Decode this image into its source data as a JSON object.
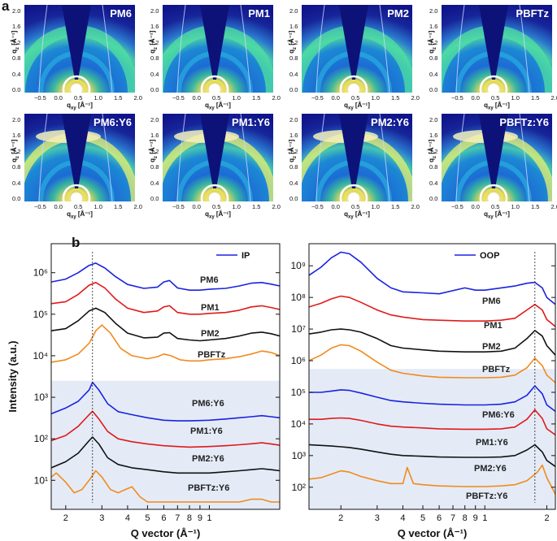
{
  "panel_a_label": "a",
  "panel_b_label": "b",
  "giwaxs": {
    "xlabel": "q_xy [Å⁻¹]",
    "xlabel_main": "q",
    "xlabel_sub": "xy",
    "xlabel_unit": " [Å⁻¹]",
    "ylabel_main": "q",
    "ylabel_sub": "z",
    "ylabel_unit": " [Å⁻¹]",
    "xticks": [
      "−0.5",
      "0.0",
      "0.5",
      "1.0",
      "1.5",
      "2.0"
    ],
    "yticks": [
      "0.0",
      "0.4",
      "0.8",
      "1.2",
      "1.6",
      "2.0"
    ],
    "tiles": [
      {
        "name": "PM6"
      },
      {
        "name": "PM1"
      },
      {
        "name": "PM2"
      },
      {
        "name": "PBFTz"
      },
      {
        "name": "PM6:Y6"
      },
      {
        "name": "PM1:Y6"
      },
      {
        "name": "PM2:Y6"
      },
      {
        "name": "PBFTz:Y6"
      }
    ]
  },
  "chart_data": [
    {
      "type": "line",
      "title": "IP",
      "legend": "IP",
      "xlabel": "Q vector (Å⁻¹)",
      "ylabel": "Intensity (a.u.)",
      "xscale": "log",
      "xlim": [
        0.17,
        2.2
      ],
      "yscale": "log",
      "ylim": [
        2,
        5000000
      ],
      "x_tick_labels": [
        "2",
        "3",
        "4",
        "5",
        "6",
        "7",
        "8",
        "9",
        "1"
      ],
      "y_tick_labels": [
        "10¹",
        "10²",
        "10³",
        "10⁴",
        "10⁵",
        "10⁶"
      ],
      "y_tick_values": [
        10,
        100,
        1000,
        10000,
        100000,
        1000000
      ],
      "peak_line_x": 0.27,
      "shaded_from": 2500,
      "series": [
        {
          "name": "PM6",
          "color": "#1a22e0",
          "x": [
            0.17,
            0.2,
            0.23,
            0.26,
            0.28,
            0.31,
            0.35,
            0.4,
            0.48,
            0.56,
            0.6,
            0.64,
            0.7,
            0.8,
            0.9,
            1.0,
            1.2,
            1.4,
            1.6,
            1.8,
            2.0,
            2.2
          ],
          "y": [
            600000,
            700000,
            1000000,
            1500000,
            1700000,
            1300000,
            800000,
            520000,
            420000,
            450000,
            600000,
            650000,
            430000,
            380000,
            380000,
            400000,
            420000,
            480000,
            560000,
            580000,
            530000,
            480000
          ]
        },
        {
          "name": "PM1",
          "color": "#e01a1a",
          "x": [
            0.17,
            0.2,
            0.23,
            0.26,
            0.28,
            0.31,
            0.35,
            0.4,
            0.48,
            0.56,
            0.6,
            0.64,
            0.7,
            0.8,
            0.9,
            1.0,
            1.2,
            1.4,
            1.6,
            1.8,
            2.0,
            2.2
          ],
          "y": [
            180000,
            200000,
            300000,
            500000,
            580000,
            430000,
            230000,
            140000,
            110000,
            120000,
            150000,
            160000,
            110000,
            100000,
            100000,
            105000,
            110000,
            125000,
            150000,
            160000,
            145000,
            130000
          ]
        },
        {
          "name": "PM2",
          "color": "#111111",
          "x": [
            0.17,
            0.2,
            0.23,
            0.26,
            0.28,
            0.31,
            0.35,
            0.4,
            0.48,
            0.56,
            0.6,
            0.64,
            0.7,
            0.8,
            0.9,
            1.0,
            1.2,
            1.4,
            1.6,
            1.8,
            2.0,
            2.2
          ],
          "y": [
            40000,
            45000,
            70000,
            120000,
            140000,
            110000,
            60000,
            35000,
            27000,
            28000,
            35000,
            36000,
            26000,
            24000,
            23000,
            24000,
            26000,
            30000,
            35000,
            37000,
            34000,
            30000
          ]
        },
        {
          "name": "PBFTz",
          "color": "#f28a1c",
          "x": [
            0.17,
            0.2,
            0.23,
            0.26,
            0.28,
            0.3,
            0.33,
            0.37,
            0.42,
            0.5,
            0.56,
            0.6,
            0.65,
            0.72,
            0.8,
            0.9,
            1.0,
            1.2,
            1.4,
            1.6,
            1.8,
            2.0,
            2.2
          ],
          "y": [
            7000,
            8000,
            11000,
            20000,
            40000,
            55000,
            35000,
            15000,
            10000,
            8500,
            9500,
            11000,
            10000,
            8000,
            7500,
            7500,
            8000,
            8500,
            9500,
            11000,
            13000,
            12000,
            10000
          ]
        },
        {
          "name": "PM6:Y6",
          "color": "#1a22e0",
          "x": [
            0.17,
            0.2,
            0.23,
            0.26,
            0.27,
            0.29,
            0.32,
            0.36,
            0.42,
            0.5,
            0.6,
            0.7,
            0.8,
            0.9,
            1.0,
            1.2,
            1.4,
            1.6,
            1.8,
            2.0,
            2.2
          ],
          "y": [
            400,
            550,
            800,
            1500,
            2300,
            1500,
            700,
            450,
            380,
            320,
            280,
            270,
            270,
            275,
            280,
            300,
            320,
            340,
            360,
            340,
            320
          ]
        },
        {
          "name": "PM1:Y6",
          "color": "#e01a1a",
          "x": [
            0.17,
            0.2,
            0.23,
            0.26,
            0.27,
            0.29,
            0.32,
            0.36,
            0.42,
            0.5,
            0.6,
            0.7,
            0.8,
            0.9,
            1.0,
            1.2,
            1.4,
            1.6,
            1.8,
            2.0,
            2.2
          ],
          "y": [
            90,
            120,
            200,
            380,
            460,
            300,
            150,
            100,
            85,
            75,
            68,
            65,
            63,
            64,
            65,
            68,
            72,
            76,
            80,
            75,
            70
          ]
        },
        {
          "name": "PM2:Y6",
          "color": "#111111",
          "x": [
            0.17,
            0.2,
            0.23,
            0.26,
            0.27,
            0.29,
            0.32,
            0.36,
            0.42,
            0.5,
            0.6,
            0.7,
            0.8,
            0.9,
            1.0,
            1.2,
            1.4,
            1.6,
            1.8,
            2.0,
            2.2
          ],
          "y": [
            20,
            28,
            45,
            90,
            110,
            75,
            35,
            24,
            20,
            18,
            16,
            15,
            15,
            15,
            15,
            16,
            17,
            18,
            19,
            18,
            17
          ]
        },
        {
          "name": "PBFTz:Y6",
          "color": "#f28a1c",
          "x": [
            0.17,
            0.18,
            0.2,
            0.22,
            0.24,
            0.26,
            0.28,
            0.3,
            0.33,
            0.36,
            0.39,
            0.42,
            0.46,
            0.5,
            0.6,
            0.7,
            0.8,
            0.9,
            1.0,
            1.2,
            1.4,
            1.6,
            1.8,
            2.0,
            2.2
          ],
          "y": [
            12,
            15,
            9,
            5,
            6,
            10,
            17,
            12,
            6,
            5,
            6,
            7,
            4,
            3,
            3,
            3,
            3,
            3,
            3,
            3,
            3,
            3.5,
            3.5,
            3,
            3
          ]
        }
      ]
    },
    {
      "type": "line",
      "title": "OOP",
      "legend": "OOP",
      "xlabel": "Q vector (Å⁻¹)",
      "xscale": "log",
      "xlim": [
        0.14,
        2.2
      ],
      "yscale": "log",
      "ylim": [
        20,
        5000000000
      ],
      "x_tick_labels": [
        "2",
        "3",
        "4",
        "5",
        "6",
        "7",
        "8",
        "9",
        "1",
        "2"
      ],
      "y_tick_labels": [
        "10²",
        "10³",
        "10⁴",
        "10⁵",
        "10⁶",
        "10⁷",
        "10⁸",
        "10⁹"
      ],
      "y_tick_values": [
        100,
        1000,
        10000,
        100000,
        1000000,
        10000000,
        100000000,
        1000000000
      ],
      "peak_line_x": 1.75,
      "shaded_from": 550000,
      "series": [
        {
          "name": "PM6",
          "color": "#1a22e0",
          "x": [
            0.14,
            0.16,
            0.18,
            0.2,
            0.22,
            0.25,
            0.3,
            0.35,
            0.4,
            0.5,
            0.6,
            0.8,
            0.9,
            1.0,
            1.2,
            1.4,
            1.6,
            1.75,
            1.9,
            2.0,
            2.2
          ],
          "y": [
            500000000,
            900000000,
            1800000000,
            2700000000,
            2400000000,
            1300000000,
            400000000,
            200000000,
            150000000,
            140000000,
            130000000,
            200000000,
            170000000,
            170000000,
            200000000,
            230000000,
            280000000,
            300000000,
            200000000,
            100000000,
            60000000
          ]
        },
        {
          "name": "PM1",
          "color": "#e01a1a",
          "x": [
            0.14,
            0.16,
            0.18,
            0.2,
            0.22,
            0.25,
            0.3,
            0.35,
            0.4,
            0.5,
            0.6,
            0.8,
            1.0,
            1.2,
            1.4,
            1.6,
            1.75,
            1.9,
            2.0,
            2.2
          ],
          "y": [
            50000000,
            65000000,
            90000000,
            110000000,
            100000000,
            70000000,
            40000000,
            28000000,
            24000000,
            20000000,
            19000000,
            18000000,
            18000000,
            19000000,
            22000000,
            40000000,
            60000000,
            40000000,
            20000000,
            12000000
          ]
        },
        {
          "name": "PM2",
          "color": "#111111",
          "x": [
            0.14,
            0.16,
            0.18,
            0.2,
            0.22,
            0.25,
            0.3,
            0.35,
            0.4,
            0.5,
            0.6,
            0.8,
            1.0,
            1.2,
            1.4,
            1.6,
            1.75,
            1.9,
            2.0,
            2.2
          ],
          "y": [
            7000000,
            8000000,
            9500000,
            10000000,
            9500000,
            8000000,
            5000000,
            3000000,
            2500000,
            2200000,
            2000000,
            1900000,
            1900000,
            2000000,
            2500000,
            5000000,
            9000000,
            6000000,
            3000000,
            1500000
          ]
        },
        {
          "name": "PBFTz",
          "color": "#f28a1c",
          "x": [
            0.14,
            0.16,
            0.18,
            0.2,
            0.22,
            0.25,
            0.3,
            0.35,
            0.4,
            0.5,
            0.6,
            0.8,
            1.0,
            1.2,
            1.4,
            1.6,
            1.75,
            1.9,
            2.0,
            2.2
          ],
          "y": [
            1000000,
            1500000,
            2500000,
            3200000,
            3000000,
            2000000,
            900000,
            500000,
            400000,
            330000,
            300000,
            290000,
            290000,
            300000,
            350000,
            600000,
            1200000,
            700000,
            350000,
            200000
          ]
        },
        {
          "name": "PM6:Y6",
          "color": "#1a22e0",
          "x": [
            0.14,
            0.16,
            0.18,
            0.2,
            0.22,
            0.25,
            0.3,
            0.35,
            0.4,
            0.5,
            0.6,
            0.8,
            1.0,
            1.2,
            1.4,
            1.6,
            1.75,
            1.9,
            2.0,
            2.2
          ],
          "y": [
            100000,
            100000,
            110000,
            120000,
            115000,
            95000,
            70000,
            55000,
            50000,
            45000,
            42000,
            40000,
            40000,
            42000,
            50000,
            80000,
            160000,
            90000,
            40000,
            25000
          ]
        },
        {
          "name": "PM1:Y6",
          "color": "#e01a1a",
          "x": [
            0.14,
            0.16,
            0.18,
            0.2,
            0.22,
            0.25,
            0.3,
            0.35,
            0.4,
            0.5,
            0.6,
            0.8,
            1.0,
            1.2,
            1.4,
            1.6,
            1.75,
            1.9,
            2.0,
            2.2
          ],
          "y": [
            14000,
            14000,
            15000,
            15500,
            15000,
            13000,
            10000,
            8500,
            8000,
            7500,
            7000,
            6800,
            6800,
            7000,
            8000,
            14000,
            28000,
            15000,
            7000,
            4500
          ]
        },
        {
          "name": "PM2:Y6",
          "color": "#111111",
          "x": [
            0.14,
            0.16,
            0.18,
            0.2,
            0.22,
            0.25,
            0.3,
            0.35,
            0.4,
            0.5,
            0.6,
            0.8,
            1.0,
            1.2,
            1.4,
            1.6,
            1.75,
            1.9,
            2.0,
            2.2
          ],
          "y": [
            2200,
            2100,
            2000,
            1900,
            1800,
            1600,
            1300,
            1100,
            1000,
            950,
            900,
            880,
            880,
            900,
            1000,
            1500,
            2200,
            1300,
            700,
            450
          ]
        },
        {
          "name": "PBFTz:Y6",
          "color": "#f28a1c",
          "x": [
            0.14,
            0.16,
            0.18,
            0.2,
            0.22,
            0.25,
            0.3,
            0.35,
            0.4,
            0.42,
            0.45,
            0.5,
            0.6,
            0.8,
            1.0,
            1.2,
            1.4,
            1.6,
            1.8,
            1.9,
            2.0,
            2.2
          ],
          "y": [
            180,
            200,
            260,
            330,
            300,
            220,
            160,
            130,
            130,
            420,
            130,
            120,
            110,
            105,
            105,
            110,
            120,
            160,
            300,
            500,
            200,
            60
          ]
        }
      ]
    }
  ]
}
